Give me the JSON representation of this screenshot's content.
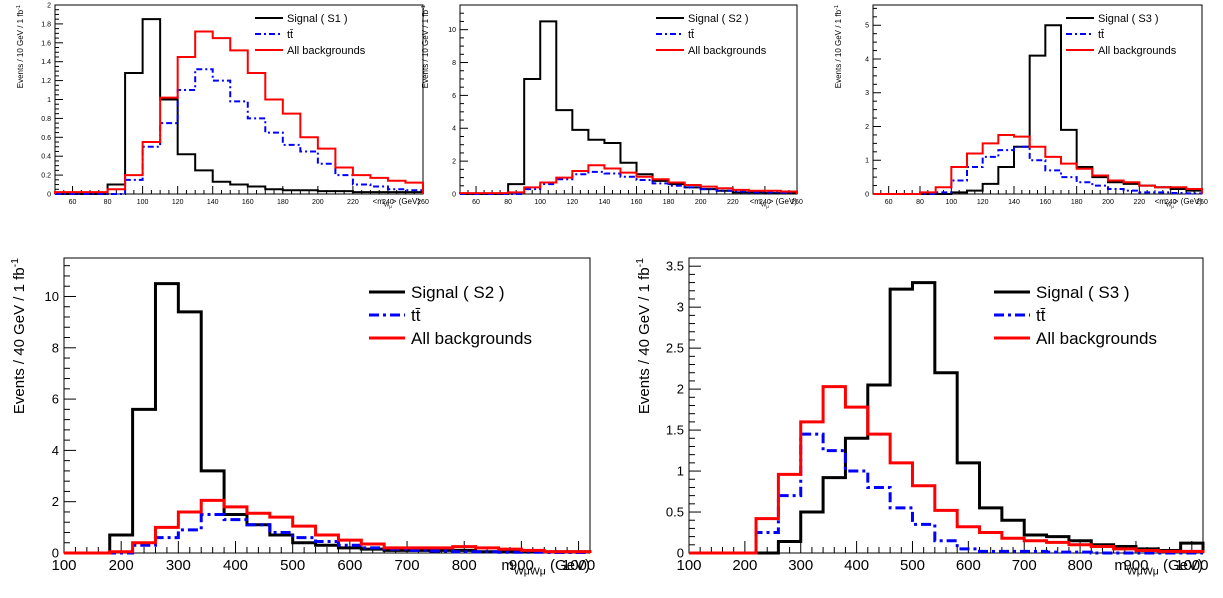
{
  "chart_data": [
    {
      "type": "step",
      "x_edges": [
        50,
        60,
        70,
        80,
        90,
        100,
        110,
        120,
        130,
        140,
        150,
        160,
        170,
        180,
        190,
        200,
        210,
        220,
        230,
        240,
        250,
        260
      ],
      "xlim": [
        50,
        260
      ],
      "ylim": [
        0,
        2
      ],
      "x_ticks": [
        60,
        80,
        100,
        120,
        140,
        160,
        180,
        200,
        220,
        240,
        260
      ],
      "y_ticks": [
        0,
        0.2,
        0.4,
        0.6,
        0.8,
        1,
        1.2,
        1.4,
        1.6,
        1.8,
        2
      ],
      "y_tick_labels": [
        "0",
        "0.2",
        "0.4",
        "0.6",
        "0.8",
        "1",
        "1.2",
        "1.4",
        "1.6",
        "1.8",
        "2"
      ],
      "xlabel": "<m",
      "xlabel_sub": "W",
      "xlabel_subsub": "μ",
      "xlabel_tail": "> (GeV)",
      "ylabel": "Events / 10 GeV / 1 fb",
      "ylabel_sup": "-1",
      "legend": [
        {
          "name": "Signal ( S1 )",
          "color": "#000000",
          "style": "solid"
        },
        {
          "name": "tt̄",
          "color": "#0000ff",
          "style": "dashdot"
        },
        {
          "name": "All backgrounds",
          "color": "#ff0000",
          "style": "solid"
        }
      ],
      "series": [
        {
          "name": "Signal ( S1 )",
          "color": "#000000",
          "style": "solid",
          "values": [
            0,
            0,
            0,
            0.1,
            1.28,
            1.85,
            1.0,
            0.42,
            0.25,
            0.13,
            0.1,
            0.08,
            0.05,
            0.04,
            0.04,
            0.03,
            0.03,
            0.02,
            0.02,
            0.02,
            0.02
          ]
        },
        {
          "name": "tt̄",
          "color": "#0000ff",
          "style": "dashdot",
          "values": [
            0,
            0,
            0,
            0,
            0.15,
            0.5,
            0.75,
            1.1,
            1.32,
            1.2,
            0.98,
            0.8,
            0.65,
            0.52,
            0.45,
            0.32,
            0.2,
            0.1,
            0.08,
            0.05,
            0.04
          ]
        },
        {
          "name": "All backgrounds",
          "color": "#ff0000",
          "style": "solid",
          "values": [
            0.02,
            0.02,
            0.02,
            0.05,
            0.2,
            0.55,
            1.02,
            1.45,
            1.72,
            1.65,
            1.52,
            1.28,
            1.0,
            0.85,
            0.6,
            0.48,
            0.28,
            0.2,
            0.17,
            0.14,
            0.12
          ]
        }
      ]
    },
    {
      "type": "step",
      "x_edges": [
        50,
        60,
        70,
        80,
        90,
        100,
        110,
        120,
        130,
        140,
        150,
        160,
        170,
        180,
        190,
        200,
        210,
        220,
        230,
        240,
        250,
        260
      ],
      "xlim": [
        50,
        260
      ],
      "ylim": [
        0,
        11.5
      ],
      "x_ticks": [
        60,
        80,
        100,
        120,
        140,
        160,
        180,
        200,
        220,
        240,
        260
      ],
      "y_ticks": [
        0,
        2,
        4,
        6,
        8,
        10
      ],
      "y_tick_labels": [
        "0",
        "2",
        "4",
        "6",
        "8",
        "10"
      ],
      "xlabel": "<m",
      "xlabel_sub": "W",
      "xlabel_subsub": "μ",
      "xlabel_tail": "> (GeV)",
      "ylabel": "Events / 10 GeV / 1 fb",
      "ylabel_sup": "-1",
      "legend": [
        {
          "name": "Signal ( S2 )",
          "color": "#000000",
          "style": "solid"
        },
        {
          "name": "tt̄",
          "color": "#0000ff",
          "style": "dashdot"
        },
        {
          "name": "All backgrounds",
          "color": "#ff0000",
          "style": "solid"
        }
      ],
      "series": [
        {
          "name": "Signal ( S2 )",
          "color": "#000000",
          "style": "solid",
          "values": [
            0,
            0,
            0,
            0.6,
            7.0,
            10.5,
            5.1,
            3.9,
            3.3,
            3.1,
            1.9,
            1.2,
            0.8,
            0.6,
            0.4,
            0.3,
            0.2,
            0.1,
            0.1,
            0.05,
            0.05
          ]
        },
        {
          "name": "tt̄",
          "color": "#0000ff",
          "style": "dashdot",
          "values": [
            0,
            0,
            0,
            0,
            0.3,
            0.6,
            0.9,
            1.2,
            1.35,
            1.25,
            1.05,
            0.85,
            0.65,
            0.5,
            0.4,
            0.3,
            0.2,
            0.15,
            0.1,
            0.1,
            0.08
          ]
        },
        {
          "name": "All backgrounds",
          "color": "#ff0000",
          "style": "solid",
          "values": [
            0.05,
            0.05,
            0.05,
            0.1,
            0.4,
            0.7,
            1.0,
            1.4,
            1.75,
            1.55,
            1.3,
            1.05,
            0.9,
            0.7,
            0.55,
            0.45,
            0.35,
            0.25,
            0.2,
            0.2,
            0.15
          ]
        }
      ]
    },
    {
      "type": "step",
      "x_edges": [
        50,
        60,
        70,
        80,
        90,
        100,
        110,
        120,
        130,
        140,
        150,
        160,
        170,
        180,
        190,
        200,
        210,
        220,
        230,
        240,
        250,
        260
      ],
      "xlim": [
        50,
        260
      ],
      "ylim": [
        0,
        5.6
      ],
      "x_ticks": [
        60,
        80,
        100,
        120,
        140,
        160,
        180,
        200,
        220,
        240,
        260
      ],
      "y_ticks": [
        0,
        1,
        2,
        3,
        4,
        5
      ],
      "y_tick_labels": [
        "0",
        "1",
        "2",
        "3",
        "4",
        "5"
      ],
      "xlabel": "<m",
      "xlabel_sub": "W",
      "xlabel_subsub": "μ",
      "xlabel_tail": "> (GeV)",
      "ylabel": "Events / 10 GeV / 1 fb",
      "ylabel_sup": "-1",
      "legend": [
        {
          "name": "Signal ( S3 )",
          "color": "#000000",
          "style": "solid"
        },
        {
          "name": "tt̄",
          "color": "#0000ff",
          "style": "dashdot"
        },
        {
          "name": "All backgrounds",
          "color": "#ff0000",
          "style": "solid"
        }
      ],
      "series": [
        {
          "name": "Signal ( S3 )",
          "color": "#000000",
          "style": "solid",
          "values": [
            0,
            0,
            0,
            0,
            0,
            0.05,
            0.1,
            0.3,
            0.8,
            1.4,
            4.1,
            5.0,
            1.9,
            0.8,
            0.5,
            0.35,
            0.3,
            0.25,
            0.2,
            0.15,
            0.1
          ]
        },
        {
          "name": "tt̄",
          "color": "#0000ff",
          "style": "dashdot",
          "values": [
            0,
            0,
            0,
            0,
            0.05,
            0.4,
            0.8,
            1.1,
            1.3,
            1.4,
            1.0,
            0.7,
            0.5,
            0.35,
            0.25,
            0.15,
            0.1,
            0.05,
            0.05,
            0.03,
            0.02
          ]
        },
        {
          "name": "All backgrounds",
          "color": "#ff0000",
          "style": "solid",
          "values": [
            0,
            0,
            0,
            0.05,
            0.2,
            0.8,
            1.2,
            1.5,
            1.75,
            1.7,
            1.4,
            1.1,
            0.9,
            0.75,
            0.55,
            0.4,
            0.35,
            0.25,
            0.2,
            0.2,
            0.15
          ]
        }
      ]
    },
    {
      "type": "step",
      "x_edges": [
        100,
        140,
        180,
        220,
        260,
        300,
        340,
        380,
        420,
        460,
        500,
        540,
        580,
        620,
        660,
        700,
        740,
        780,
        820,
        860,
        900,
        940,
        980,
        1020
      ],
      "xlim": [
        100,
        1020
      ],
      "ylim": [
        0,
        11.5
      ],
      "x_ticks": [
        100,
        200,
        300,
        400,
        500,
        600,
        700,
        800,
        900,
        1000
      ],
      "y_ticks": [
        0,
        2,
        4,
        6,
        8,
        10
      ],
      "y_tick_labels": [
        "0",
        "2",
        "4",
        "6",
        "8",
        "10"
      ],
      "xlabel": "m",
      "xlabel_sub": "WμWμ",
      "xlabel_tail": " (GeV)",
      "ylabel": "Events / 40 GeV / 1 fb",
      "ylabel_sup": "-1",
      "legend": [
        {
          "name": "Signal ( S2 )",
          "color": "#000000",
          "style": "solid"
        },
        {
          "name": "tt̄",
          "color": "#0000ff",
          "style": "dashdot"
        },
        {
          "name": "All backgrounds",
          "color": "#ff0000",
          "style": "solid"
        }
      ],
      "series": [
        {
          "name": "Signal ( S2 )",
          "color": "#000000",
          "style": "solid",
          "values": [
            0,
            0,
            0.7,
            5.6,
            10.5,
            9.4,
            3.2,
            1.5,
            1.1,
            0.7,
            0.4,
            0.3,
            0.2,
            0.15,
            0.1,
            0.1,
            0.1,
            0.1,
            0.05,
            0.05,
            0.05,
            0.05,
            0.05
          ]
        },
        {
          "name": "tt̄",
          "color": "#0000ff",
          "style": "dashdot",
          "values": [
            0,
            0,
            0,
            0.3,
            0.6,
            0.9,
            1.5,
            1.3,
            1.1,
            0.8,
            0.6,
            0.45,
            0.3,
            0.2,
            0.15,
            0.1,
            0.08,
            0.05,
            0.05,
            0.03,
            0.03,
            0.02,
            0.02
          ]
        },
        {
          "name": "All backgrounds",
          "color": "#ff0000",
          "style": "solid",
          "values": [
            0,
            0,
            0.05,
            0.4,
            1.0,
            1.6,
            2.05,
            1.8,
            1.55,
            1.4,
            1.05,
            0.7,
            0.5,
            0.35,
            0.2,
            0.2,
            0.2,
            0.25,
            0.2,
            0.15,
            0.1,
            0.05,
            0.05
          ]
        }
      ]
    },
    {
      "type": "step",
      "x_edges": [
        100,
        140,
        180,
        220,
        260,
        300,
        340,
        380,
        420,
        460,
        500,
        540,
        580,
        620,
        660,
        700,
        740,
        780,
        820,
        860,
        900,
        940,
        980,
        1020
      ],
      "xlim": [
        100,
        1020
      ],
      "ylim": [
        0,
        3.6
      ],
      "x_ticks": [
        100,
        200,
        300,
        400,
        500,
        600,
        700,
        800,
        900,
        1000
      ],
      "y_ticks": [
        0,
        0.5,
        1,
        1.5,
        2,
        2.5,
        3,
        3.5
      ],
      "y_tick_labels": [
        "0",
        "0.5",
        "1",
        "1.5",
        "2",
        "2.5",
        "3",
        "3.5"
      ],
      "xlabel": "m",
      "xlabel_sub": "WμWμ",
      "xlabel_tail": " (GeV)",
      "ylabel": "Events / 40 GeV / 1 fb",
      "ylabel_sup": "-1",
      "legend": [
        {
          "name": "Signal ( S3 )",
          "color": "#000000",
          "style": "solid"
        },
        {
          "name": "tt̄",
          "color": "#0000ff",
          "style": "dashdot"
        },
        {
          "name": "All backgrounds",
          "color": "#ff0000",
          "style": "solid"
        }
      ],
      "series": [
        {
          "name": "Signal ( S3 )",
          "color": "#000000",
          "style": "solid",
          "values": [
            0,
            0,
            0,
            0,
            0.14,
            0.5,
            0.92,
            1.4,
            2.05,
            3.22,
            3.3,
            2.2,
            1.1,
            0.55,
            0.4,
            0.22,
            0.2,
            0.15,
            0.1,
            0.08,
            0.05,
            0.03,
            0.12
          ]
        },
        {
          "name": "tt̄",
          "color": "#0000ff",
          "style": "dashdot",
          "values": [
            0,
            0,
            0,
            0.25,
            0.7,
            1.45,
            1.25,
            1.0,
            0.8,
            0.55,
            0.35,
            0.15,
            0.05,
            0.02,
            0.02,
            0.02,
            0.01,
            0.01,
            0,
            0,
            0,
            0,
            0
          ]
        },
        {
          "name": "All backgrounds",
          "color": "#ff0000",
          "style": "solid",
          "values": [
            0,
            0,
            0,
            0.42,
            0.96,
            1.6,
            2.03,
            1.78,
            1.45,
            1.1,
            0.82,
            0.52,
            0.32,
            0.25,
            0.18,
            0.15,
            0.13,
            0.1,
            0.08,
            0.05,
            0.03,
            0.02,
            0.02
          ]
        }
      ]
    }
  ]
}
